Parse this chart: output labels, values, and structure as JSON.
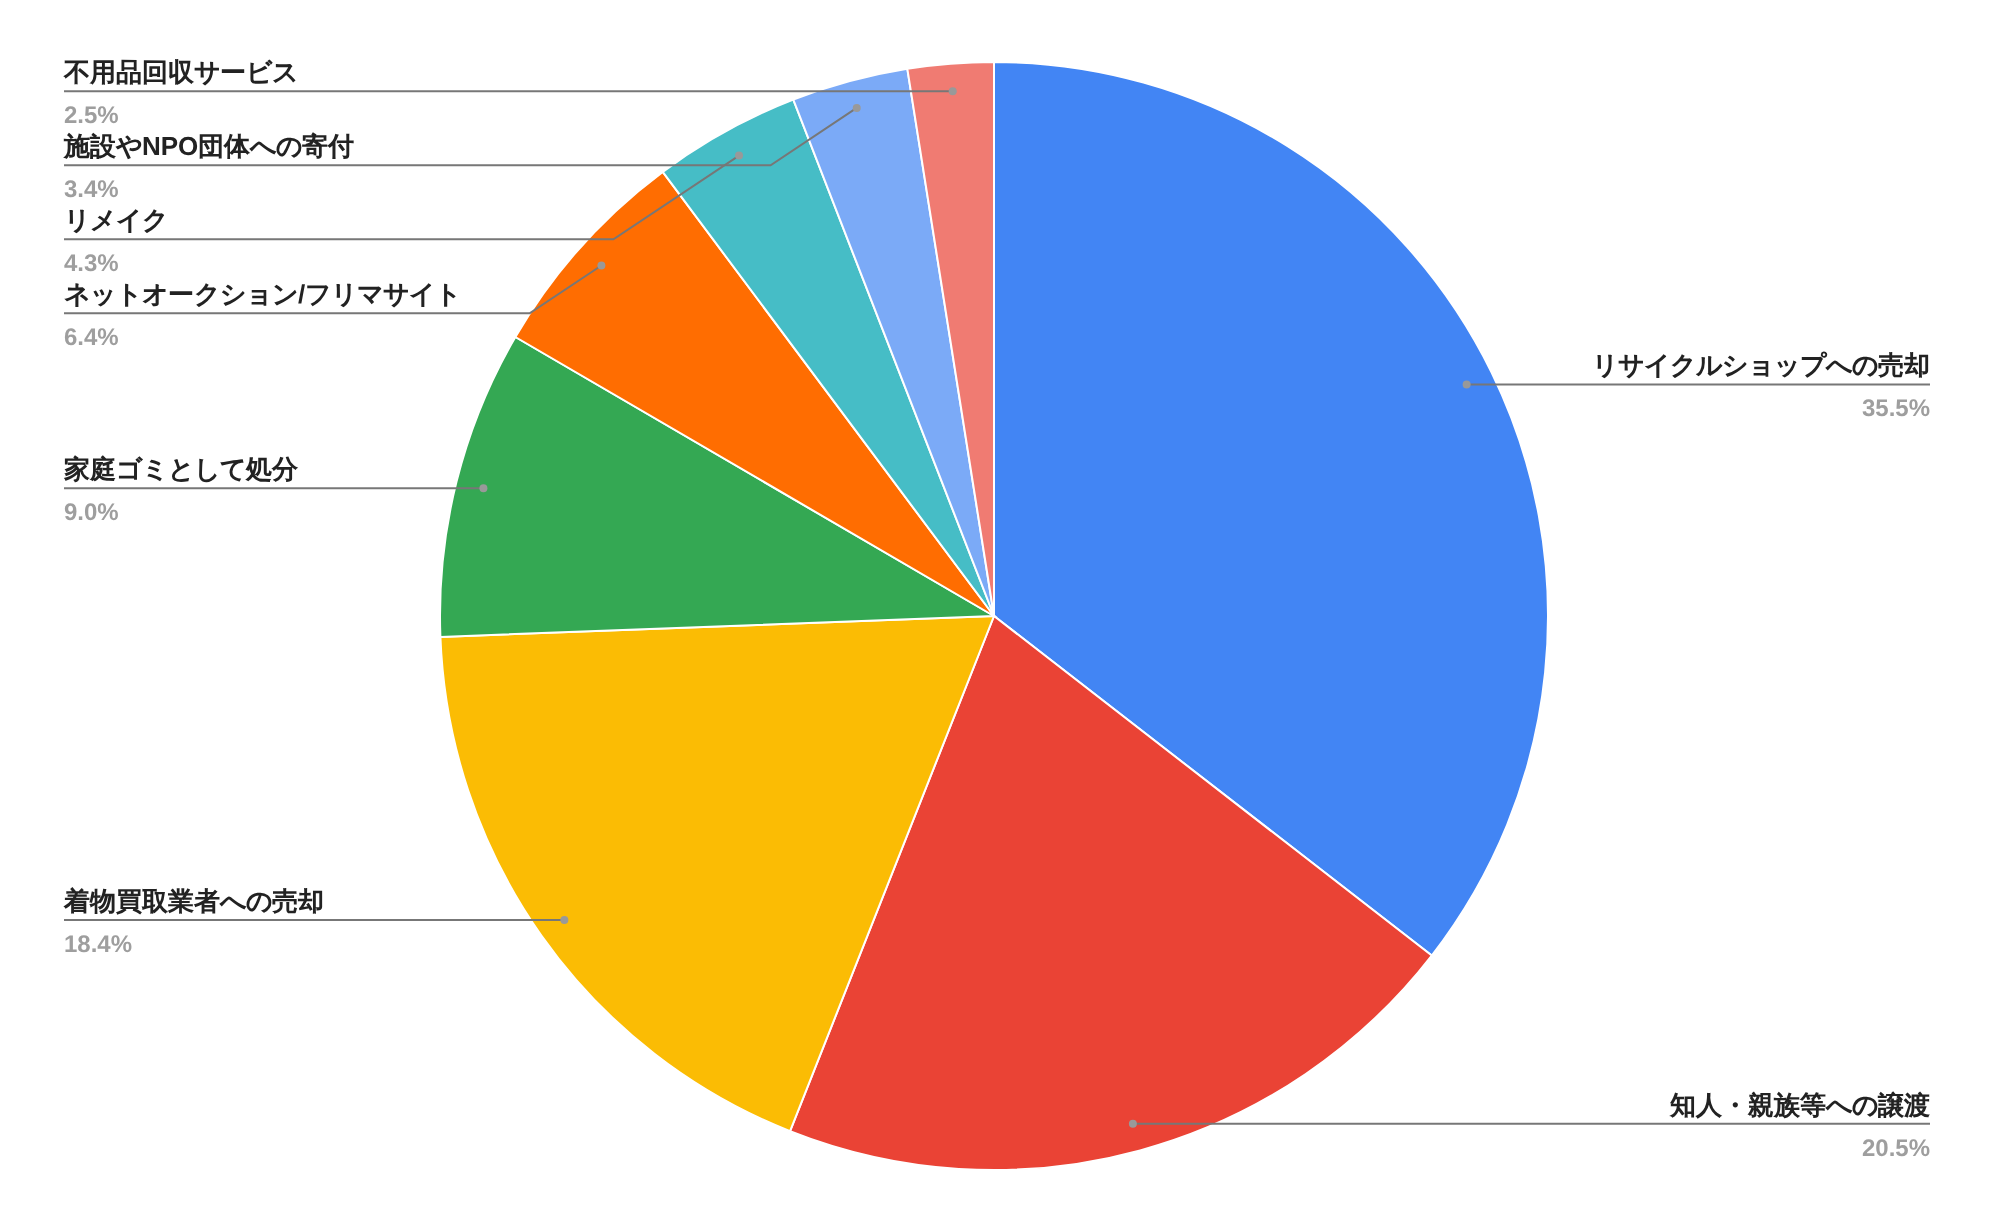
{
  "chart_data": {
    "type": "pie",
    "categories": [
      "リサイクルショップへの売却",
      "知人・親族等への譲渡",
      "着物買取業者への売却",
      "家庭ゴミとして処分",
      "ネットオークション/フリマサイト",
      "リメイク",
      "施設やNPO団体への寄付",
      "不用品回収サービス"
    ],
    "values": [
      35.5,
      20.5,
      18.4,
      9.0,
      6.4,
      4.3,
      3.4,
      2.5
    ],
    "colors": [
      "#4285f4",
      "#ea4335",
      "#fbbc04",
      "#34a853",
      "#ff6d01",
      "#46bdc6",
      "#7baaf7",
      "#f07b72"
    ],
    "value_labels": [
      "35.5%",
      "20.5%",
      "18.4%",
      "9.0%",
      "6.4%",
      "4.3%",
      "3.4%",
      "2.5%"
    ]
  }
}
